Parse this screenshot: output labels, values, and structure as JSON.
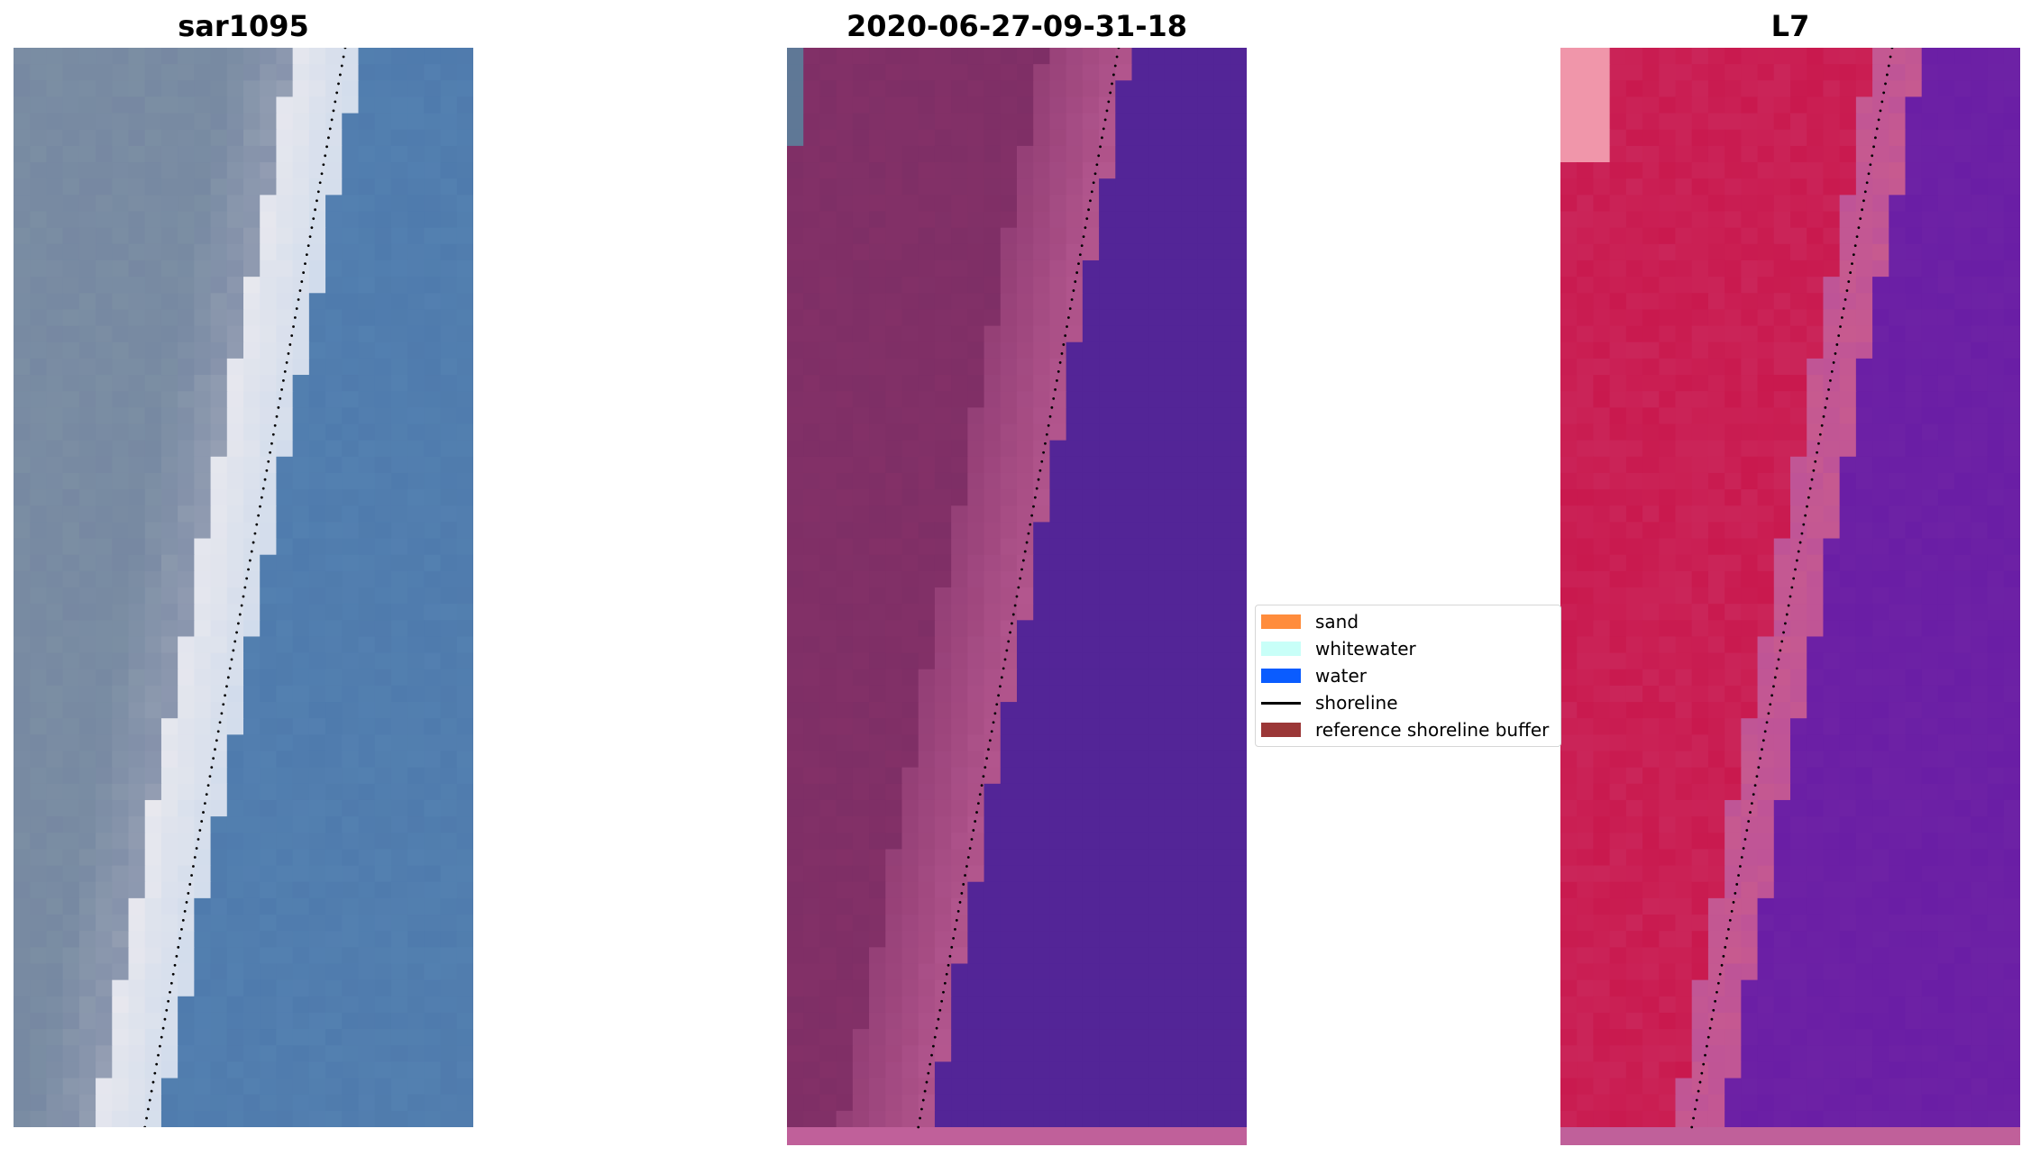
{
  "panels": {
    "left": {
      "title": "sar1095"
    },
    "middle": {
      "title": "2020-06-27-09-31-18"
    },
    "right": {
      "title": "L7"
    }
  },
  "legend": {
    "items": [
      {
        "label": "sand",
        "color": "#ff8c3c",
        "kind": "patch"
      },
      {
        "label": "whitewater",
        "color": "#c8fff8",
        "kind": "patch"
      },
      {
        "label": "water",
        "color": "#0a5cff",
        "kind": "patch"
      },
      {
        "label": "shoreline",
        "color": "#000000",
        "kind": "line"
      },
      {
        "label": "reference shoreline buffer",
        "color": "#9b3737",
        "kind": "patch"
      }
    ]
  },
  "colors": {
    "rgb_land": "#7b8ea3",
    "rgb_beach": "#e8e8ee",
    "rgb_water": "#5380b0",
    "class_land": "#7e2f66",
    "class_buffer": "#b55890",
    "class_water": "#532597",
    "class_bottom": "#c0609a",
    "ndwi_land": "#c9194e",
    "ndwi_water": "#6a1ea5",
    "ndwi_buffer": "#c75a8f"
  }
}
